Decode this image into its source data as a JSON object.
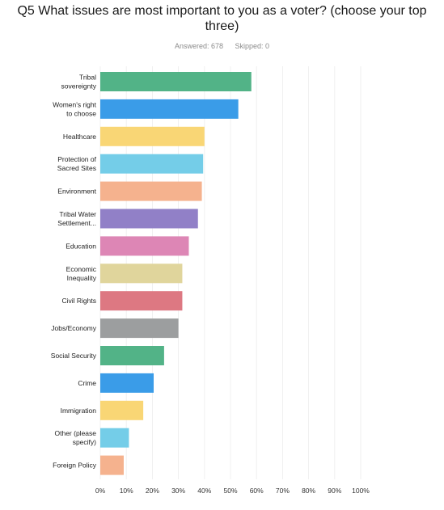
{
  "page": {
    "title": "Q5 What issues are most important to you as a voter? (choose your top three)",
    "answered": "Answered: 678",
    "skipped": "Skipped: 0"
  },
  "chart_data": {
    "type": "bar",
    "orientation": "horizontal",
    "title": "Q5 What issues are most important to you as a voter? (choose your top three)",
    "xlim": [
      0,
      100
    ],
    "x_ticks": [
      "0%",
      "10%",
      "20%",
      "30%",
      "40%",
      "50%",
      "60%",
      "70%",
      "80%",
      "90%",
      "100%"
    ],
    "grid": true,
    "categories": [
      [
        "Tribal",
        "sovereignty"
      ],
      [
        "Women's right",
        "to choose"
      ],
      [
        "Healthcare"
      ],
      [
        "Protection of",
        "Sacred Sites"
      ],
      [
        "Environment"
      ],
      [
        "Tribal Water",
        "Settlement..."
      ],
      [
        "Education"
      ],
      [
        "Economic",
        "Inequality"
      ],
      [
        "Civil Rights"
      ],
      [
        "Jobs/Economy"
      ],
      [
        "Social Security"
      ],
      [
        "Crime"
      ],
      [
        "Immigration"
      ],
      [
        "Other (please",
        "specify)"
      ],
      [
        "Foreign Policy"
      ]
    ],
    "values": [
      58,
      53,
      40,
      39.5,
      39,
      37.5,
      34,
      31.5,
      31.5,
      30,
      24.5,
      20.5,
      16.5,
      11,
      9
    ],
    "colors": [
      "#52b387",
      "#3a9ce8",
      "#f9d675",
      "#74cde8",
      "#f5b28e",
      "#9180c7",
      "#dd86b5",
      "#e0d59c",
      "#dd7882",
      "#9c9e9f",
      "#52b387",
      "#3a9ce8",
      "#f9d675",
      "#74cde8",
      "#f5b28e"
    ]
  }
}
